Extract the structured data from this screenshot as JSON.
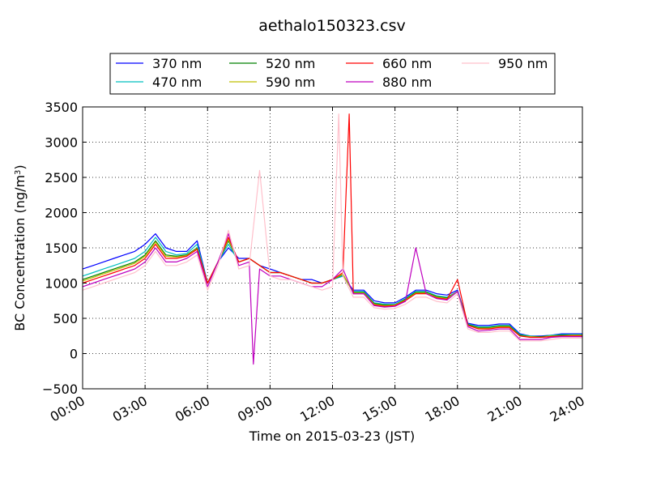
{
  "chart_data": {
    "type": "line",
    "title": "aethalo150323.csv",
    "xlabel": "Time on 2015-03-23 (JST)",
    "ylabel": "BC Concentration (ng/m",
    "ylabel_sup": "3",
    "ylabel_close": ")",
    "xlim": [
      0,
      24
    ],
    "ylim": [
      -500,
      3500
    ],
    "x_ticks": [
      {
        "value": 0,
        "label": "00:00"
      },
      {
        "value": 3,
        "label": "03:00"
      },
      {
        "value": 6,
        "label": "06:00"
      },
      {
        "value": 9,
        "label": "09:00"
      },
      {
        "value": 12,
        "label": "12:00"
      },
      {
        "value": 15,
        "label": "15:00"
      },
      {
        "value": 18,
        "label": "18:00"
      },
      {
        "value": 21,
        "label": "21:00"
      },
      {
        "value": 24,
        "label": "24:00"
      }
    ],
    "y_ticks": [
      {
        "value": -500,
        "label": "−500"
      },
      {
        "value": 0,
        "label": "0"
      },
      {
        "value": 500,
        "label": "500"
      },
      {
        "value": 1000,
        "label": "1000"
      },
      {
        "value": 1500,
        "label": "1500"
      },
      {
        "value": 2000,
        "label": "2000"
      },
      {
        "value": 2500,
        "label": "2500"
      },
      {
        "value": 3000,
        "label": "3000"
      },
      {
        "value": 3500,
        "label": "3500"
      }
    ],
    "grid": true,
    "legend_position": "top-center",
    "x_unit": "hours since 00:00",
    "series": [
      {
        "name": "370 nm",
        "color": "#0000ff",
        "x": [
          0,
          0.5,
          1,
          1.5,
          2,
          2.5,
          3,
          3.5,
          4,
          4.5,
          5,
          5.5,
          6,
          6.5,
          7,
          7.5,
          8,
          8.5,
          9,
          9.5,
          10,
          10.5,
          11,
          11.5,
          12,
          12.5,
          13,
          13.5,
          14,
          14.5,
          15,
          15.5,
          16,
          16.5,
          17,
          17.5,
          18,
          18.5,
          19,
          19.5,
          20,
          20.5,
          21,
          21.5,
          22,
          22.5,
          23,
          23.5,
          24
        ],
        "y": [
          1200,
          1250,
          1300,
          1350,
          1400,
          1450,
          1550,
          1700,
          1500,
          1450,
          1450,
          1600,
          1000,
          1300,
          1500,
          1350,
          1350,
          1250,
          1200,
          1150,
          1100,
          1050,
          1050,
          1000,
          1050,
          1100,
          900,
          900,
          750,
          720,
          720,
          800,
          900,
          900,
          850,
          830,
          900,
          430,
          400,
          400,
          420,
          420,
          280,
          250,
          250,
          260,
          280,
          280,
          280
        ]
      },
      {
        "name": "470 nm",
        "color": "#00bfbf",
        "x": [
          0,
          0.5,
          1,
          1.5,
          2,
          2.5,
          3,
          3.5,
          4,
          4.5,
          5,
          5.5,
          6,
          6.5,
          7,
          7.5,
          8,
          8.5,
          9,
          9.5,
          10,
          10.5,
          11,
          11.5,
          12,
          12.5,
          13,
          13.5,
          14,
          14.5,
          15,
          15.5,
          16,
          16.5,
          17,
          17.5,
          18,
          18.5,
          19,
          19.5,
          20,
          20.5,
          21,
          21.5,
          22,
          22.5,
          23,
          23.5,
          24
        ],
        "y": [
          1100,
          1150,
          1200,
          1250,
          1300,
          1350,
          1450,
          1650,
          1450,
          1400,
          1420,
          1550,
          1000,
          1300,
          1550,
          1300,
          1350,
          1250,
          1150,
          1150,
          1100,
          1050,
          1000,
          1000,
          1050,
          1100,
          880,
          880,
          720,
          700,
          700,
          780,
          880,
          880,
          820,
          800,
          880,
          420,
          380,
          380,
          400,
          400,
          270,
          250,
          240,
          260,
          270,
          270,
          270
        ]
      },
      {
        "name": "520 nm",
        "color": "#008000",
        "x": [
          0,
          0.5,
          1,
          1.5,
          2,
          2.5,
          3,
          3.5,
          4,
          4.5,
          5,
          5.5,
          6,
          6.5,
          7,
          7.5,
          8,
          8.5,
          9,
          9.5,
          10,
          10.5,
          11,
          11.5,
          12,
          12.5,
          13,
          13.5,
          14,
          14.5,
          15,
          15.5,
          16,
          16.5,
          17,
          17.5,
          18,
          18.5,
          19,
          19.5,
          20,
          20.5,
          21,
          21.5,
          22,
          22.5,
          23,
          23.5,
          24
        ],
        "y": [
          1050,
          1100,
          1150,
          1200,
          1250,
          1300,
          1400,
          1600,
          1400,
          1380,
          1400,
          1500,
          1000,
          1300,
          1600,
          1300,
          1350,
          1250,
          1150,
          1150,
          1100,
          1050,
          1000,
          1000,
          1050,
          1120,
          870,
          870,
          710,
          690,
          690,
          770,
          870,
          870,
          810,
          790,
          880,
          410,
          370,
          370,
          390,
          390,
          260,
          240,
          240,
          250,
          260,
          260,
          260
        ]
      },
      {
        "name": "590 nm",
        "color": "#bfbf00",
        "x": [
          0,
          0.5,
          1,
          1.5,
          2,
          2.5,
          3,
          3.5,
          4,
          4.5,
          5,
          5.5,
          6,
          6.5,
          7,
          7.5,
          8,
          8.5,
          9,
          9.5,
          10,
          10.5,
          11,
          11.5,
          12,
          12.5,
          13,
          13.5,
          14,
          14.5,
          15,
          15.5,
          16,
          16.5,
          17,
          17.5,
          18,
          18.5,
          19,
          19.5,
          20,
          20.5,
          21,
          21.5,
          22,
          22.5,
          23,
          23.5,
          24
        ],
        "y": [
          1030,
          1080,
          1130,
          1180,
          1230,
          1280,
          1380,
          1580,
          1380,
          1370,
          1390,
          1490,
          1000,
          1300,
          1620,
          1300,
          1350,
          1250,
          1150,
          1150,
          1100,
          1050,
          1000,
          1000,
          1050,
          1130,
          860,
          860,
          700,
          680,
          690,
          760,
          860,
          860,
          800,
          780,
          880,
          400,
          360,
          360,
          380,
          380,
          250,
          240,
          230,
          250,
          250,
          260,
          260
        ]
      },
      {
        "name": "660 nm",
        "color": "#ff0000",
        "x": [
          0,
          0.5,
          1,
          1.5,
          2,
          2.5,
          3,
          3.5,
          4,
          4.5,
          5,
          5.5,
          6,
          6.5,
          7,
          7.5,
          8,
          8.5,
          9,
          9.5,
          10,
          10.5,
          11,
          11.5,
          12,
          12.5,
          12.8,
          13,
          13.5,
          14,
          14.5,
          15,
          15.5,
          16,
          16.5,
          17,
          17.5,
          18,
          18.5,
          19,
          19.5,
          20,
          20.5,
          21,
          21.5,
          22,
          22.5,
          23,
          23.5,
          24
        ],
        "y": [
          1000,
          1050,
          1100,
          1150,
          1200,
          1250,
          1350,
          1550,
          1350,
          1350,
          1380,
          1480,
          1000,
          1300,
          1650,
          1300,
          1350,
          1250,
          1150,
          1150,
          1100,
          1050,
          1000,
          1000,
          1050,
          1150,
          3400,
          850,
          850,
          690,
          670,
          680,
          750,
          850,
          850,
          790,
          770,
          1050,
          400,
          350,
          350,
          370,
          370,
          250,
          230,
          230,
          240,
          250,
          250,
          250
        ]
      },
      {
        "name": "880 nm",
        "color": "#bf00bf",
        "x": [
          0,
          0.5,
          1,
          1.5,
          2,
          2.5,
          3,
          3.5,
          4,
          4.5,
          5,
          5.5,
          6,
          6.5,
          7,
          7.5,
          8,
          8.2,
          8.5,
          9,
          9.5,
          10,
          10.5,
          11,
          11.5,
          12,
          12.5,
          13,
          13.5,
          14,
          14.5,
          15,
          15.5,
          16,
          16.5,
          17,
          17.5,
          18,
          18.5,
          19,
          19.5,
          20,
          20.5,
          21,
          21.5,
          22,
          22.5,
          23,
          23.5,
          24
        ],
        "y": [
          950,
          1000,
          1050,
          1100,
          1150,
          1200,
          1300,
          1500,
          1300,
          1300,
          1350,
          1450,
          950,
          1300,
          1700,
          1250,
          1300,
          -150,
          1200,
          1100,
          1100,
          1050,
          1000,
          950,
          950,
          1050,
          1200,
          850,
          850,
          680,
          660,
          670,
          740,
          1500,
          850,
          780,
          760,
          880,
          380,
          320,
          330,
          350,
          350,
          200,
          200,
          200,
          230,
          240,
          240,
          240
        ]
      },
      {
        "name": "950 nm",
        "color": "#ffc0cb",
        "x": [
          0,
          0.5,
          1,
          1.5,
          2,
          2.5,
          3,
          3.5,
          4,
          4.5,
          5,
          5.5,
          6,
          6.5,
          7,
          7.5,
          8,
          8.5,
          9,
          9.5,
          10,
          10.5,
          11,
          11.5,
          12,
          12.3,
          12.5,
          13,
          13.5,
          14,
          14.5,
          15,
          15.5,
          16,
          16.5,
          17,
          17.5,
          18,
          18.5,
          19,
          19.5,
          20,
          20.5,
          21,
          21.5,
          22,
          22.5,
          23,
          23.5,
          24
        ],
        "y": [
          900,
          950,
          1000,
          1050,
          1100,
          1150,
          1250,
          1450,
          1250,
          1250,
          1300,
          1400,
          900,
          1250,
          1750,
          1200,
          1250,
          2600,
          1100,
          1050,
          1050,
          1000,
          950,
          900,
          950,
          3400,
          1100,
          800,
          800,
          650,
          630,
          640,
          700,
          800,
          800,
          740,
          720,
          850,
          350,
          300,
          300,
          320,
          320,
          180,
          180,
          180,
          200,
          220,
          220,
          220
        ]
      }
    ]
  }
}
